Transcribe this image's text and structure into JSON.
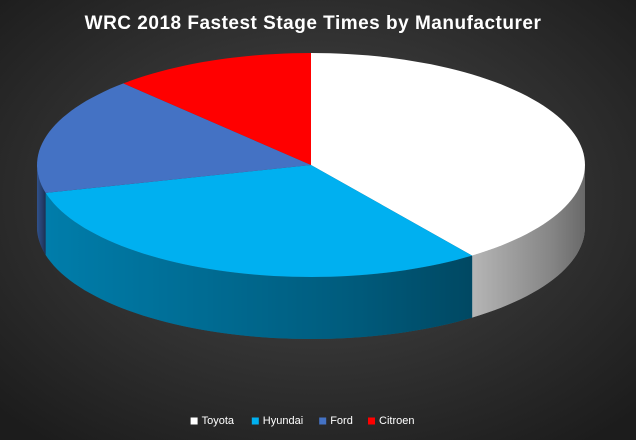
{
  "chart_data": {
    "type": "pie3d",
    "title": "WRC 2018 Fastest Stage Times by Manufacturer",
    "categories": [
      "Toyota",
      "Hyundai",
      "Ford",
      "Citroen"
    ],
    "values": [
      40,
      31,
      17,
      12
    ],
    "colors": [
      "#ffffff",
      "#00b0f0",
      "#4472c4",
      "#ff0000"
    ],
    "legend": "bottom"
  }
}
